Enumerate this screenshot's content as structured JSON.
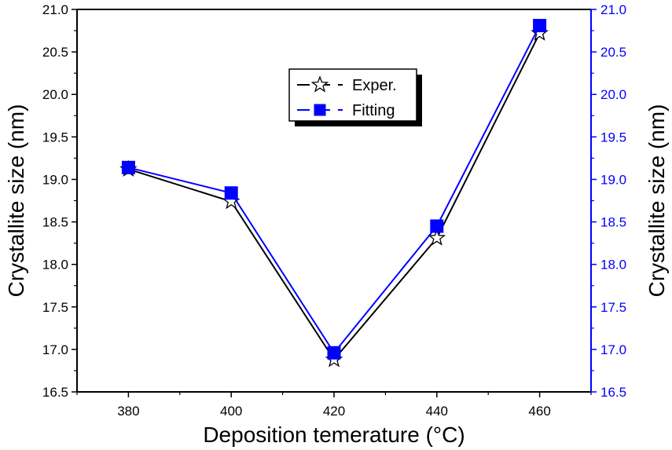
{
  "chart_data": {
    "type": "line",
    "xlabel": "Deposition temerature (°C)",
    "ylabel_left": "Crystallite size (nm)",
    "ylabel_right": "Crystallite size (nm)",
    "xlim": [
      370,
      470
    ],
    "ylim": [
      16.5,
      21.0
    ],
    "x": [
      380,
      400,
      420,
      440,
      460
    ],
    "x_ticks": [
      "380",
      "400",
      "420",
      "440",
      "460"
    ],
    "y_ticks": [
      "16.5",
      "17.0",
      "17.5",
      "18.0",
      "18.5",
      "19.0",
      "19.5",
      "20.0",
      "20.5",
      "21.0"
    ],
    "series": [
      {
        "name": "Exper.",
        "values": [
          19.12,
          18.74,
          16.88,
          18.31,
          20.72
        ],
        "color": "#000000",
        "marker": "star",
        "axis": "left"
      },
      {
        "name": "Fitting",
        "values": [
          19.14,
          18.84,
          16.96,
          18.45,
          20.81
        ],
        "color": "#0000ff",
        "marker": "square",
        "axis": "right"
      }
    ],
    "legend_position": "upper-center",
    "grid": false,
    "right_axis_color": "#0000ff"
  }
}
